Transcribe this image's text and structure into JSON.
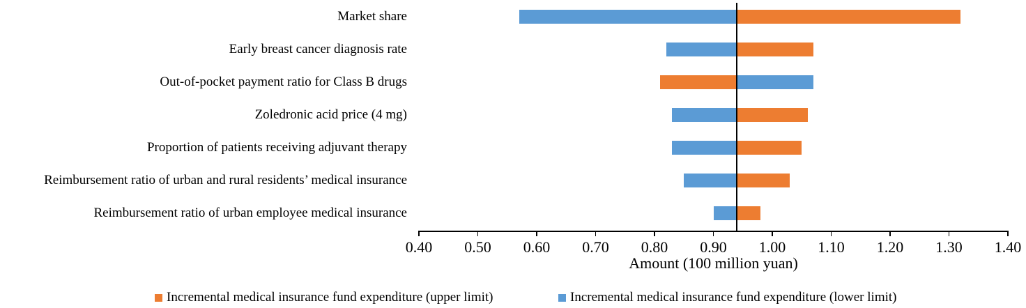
{
  "chart_data": {
    "type": "bar",
    "subtype": "tornado",
    "orientation": "horizontal",
    "title": "",
    "xlabel": "Amount (100 million yuan)",
    "ylabel": "",
    "xlim": [
      0.4,
      1.4
    ],
    "baseline": 0.94,
    "grid": false,
    "legend_position": "bottom",
    "x_ticks": [
      "0.40",
      "0.50",
      "0.60",
      "0.70",
      "0.80",
      "0.90",
      "1.00",
      "1.10",
      "1.20",
      "1.30",
      "1.40"
    ],
    "categories": [
      "Market share",
      "Early breast cancer diagnosis rate",
      "Out-of-pocket payment ratio for Class B drugs",
      "Zoledronic acid price (4 mg)",
      "Proportion of patients receiving adjuvant therapy",
      "Reimbursement ratio of urban and rural residents’ medical insurance",
      "Reimbursement ratio of urban employee medical insurance"
    ],
    "rows": [
      {
        "category": "Market share",
        "low": {
          "series": "lower",
          "value": 0.57
        },
        "high": {
          "series": "upper",
          "value": 1.32
        }
      },
      {
        "category": "Early breast cancer diagnosis rate",
        "low": {
          "series": "lower",
          "value": 0.82
        },
        "high": {
          "series": "upper",
          "value": 1.07
        }
      },
      {
        "category": "Out-of-pocket payment ratio for Class B drugs",
        "low": {
          "series": "upper",
          "value": 0.81
        },
        "high": {
          "series": "lower",
          "value": 1.07
        }
      },
      {
        "category": "Zoledronic acid price (4 mg)",
        "low": {
          "series": "lower",
          "value": 0.83
        },
        "high": {
          "series": "upper",
          "value": 1.06
        }
      },
      {
        "category": "Proportion of patients receiving adjuvant therapy",
        "low": {
          "series": "lower",
          "value": 0.83
        },
        "high": {
          "series": "upper",
          "value": 1.05
        }
      },
      {
        "category": "Reimbursement ratio of urban and rural residents’ medical insurance",
        "low": {
          "series": "lower",
          "value": 0.85
        },
        "high": {
          "series": "upper",
          "value": 1.03
        }
      },
      {
        "category": "Reimbursement ratio of urban employee medical insurance",
        "low": {
          "series": "lower",
          "value": 0.9
        },
        "high": {
          "series": "upper",
          "value": 0.98
        }
      }
    ],
    "legend": [
      {
        "series": "upper",
        "label": "Incremental medical insurance fund expenditure (upper limit)",
        "color": "#ED7D31"
      },
      {
        "series": "lower",
        "label": "Incremental medical insurance fund expenditure (lower limit)",
        "color": "#5B9BD5"
      }
    ]
  },
  "colors": {
    "upper": "#ED7D31",
    "lower": "#5B9BD5",
    "axis": "#000000",
    "baseline": "#000000",
    "text": "#000000"
  }
}
